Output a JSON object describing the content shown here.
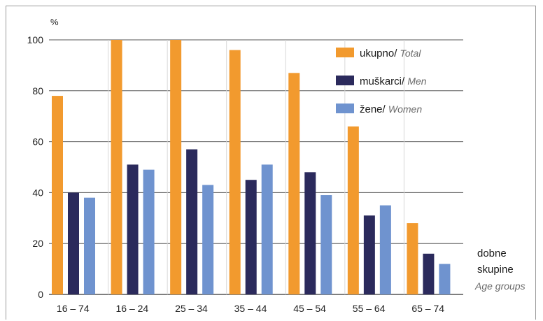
{
  "chart_data": {
    "type": "bar",
    "ylabel": "%",
    "ylim": [
      0,
      100
    ],
    "yticks": [
      "0",
      "20",
      "40",
      "60",
      "80",
      "100"
    ],
    "categories": [
      "16 – 74",
      "16 – 24",
      "25 – 34",
      "35 – 44",
      "45 – 54",
      "55 – 64",
      "65 – 74"
    ],
    "series": [
      {
        "name": "ukupno/",
        "name_en": "Total",
        "color": "#f29a2e",
        "values": [
          78,
          100,
          100,
          96,
          87,
          66,
          28
        ]
      },
      {
        "name": "muškarci/",
        "name_en": "Men",
        "color": "#2b2a5c",
        "values": [
          40,
          51,
          57,
          45,
          48,
          31,
          16
        ]
      },
      {
        "name": "žene/",
        "name_en": "Women",
        "color": "#6f93cf",
        "values": [
          38,
          49,
          43,
          51,
          39,
          35,
          12
        ]
      }
    ],
    "xlabel_line1": "dobne",
    "xlabel_line2": "skupine",
    "xlabel_en": "Age groups",
    "grid": true,
    "legend_position": "top-right"
  }
}
